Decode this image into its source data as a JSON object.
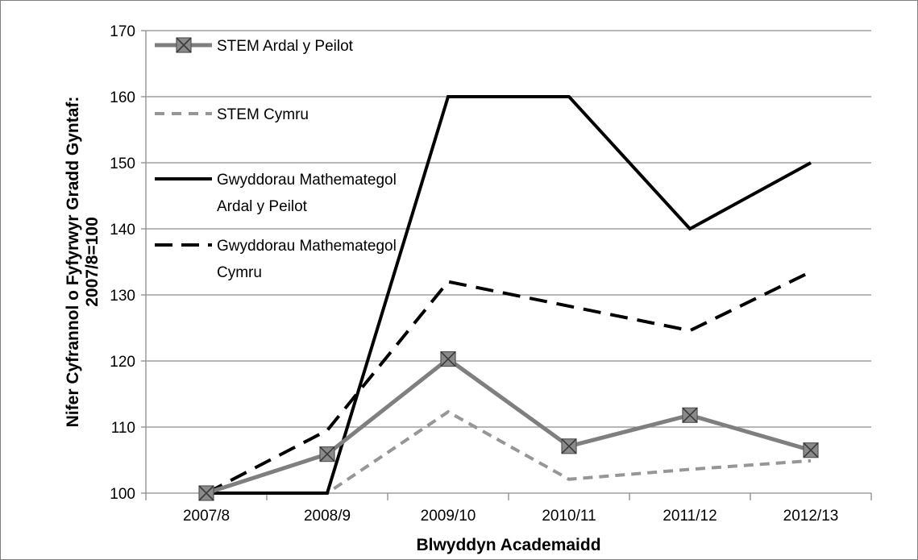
{
  "chart_data": {
    "type": "line",
    "title": "",
    "xlabel": "Blwyddyn Academaidd",
    "ylabel_lines": [
      "Nifer Cyfrannol o Fyfyrwyr Gradd Gyntaf:",
      "2007/8=100"
    ],
    "categories": [
      "2007/8",
      "2008/9",
      "2009/10",
      "2010/11",
      "2011/12",
      "2012/13"
    ],
    "ylim": [
      100,
      170
    ],
    "yticks": [
      100,
      110,
      120,
      130,
      140,
      150,
      160,
      170
    ],
    "grid": true,
    "legend_position": "top-left",
    "series": [
      {
        "name": "STEM Ardal y Peilot",
        "name_lines": [
          "STEM Ardal y Peilot"
        ],
        "values": [
          100,
          105.9,
          120.3,
          107.1,
          111.8,
          106.5
        ],
        "color": "#7f7f7f",
        "style": "solid",
        "marker": "square-x"
      },
      {
        "name": "STEM Cymru",
        "name_lines": [
          "STEM Cymru"
        ],
        "values": [
          100,
          100,
          112.3,
          102.1,
          103.6,
          104.9
        ],
        "color": "#969696",
        "style": "dashed-short",
        "marker": "none"
      },
      {
        "name": "Gwyddorau Mathemategol Ardal y Peilot",
        "name_lines": [
          "Gwyddorau Mathemategol",
          "Ardal y Peilot"
        ],
        "values": [
          100,
          100,
          160,
          160,
          140,
          150
        ],
        "color": "#000000",
        "style": "solid",
        "marker": "none"
      },
      {
        "name": "Gwyddorau Mathemategol Cymru",
        "name_lines": [
          "Gwyddorau Mathemategol",
          "Cymru"
        ],
        "values": [
          100,
          109.5,
          132,
          128.3,
          124.6,
          133.5
        ],
        "color": "#000000",
        "style": "dashed-long",
        "marker": "none"
      }
    ]
  }
}
